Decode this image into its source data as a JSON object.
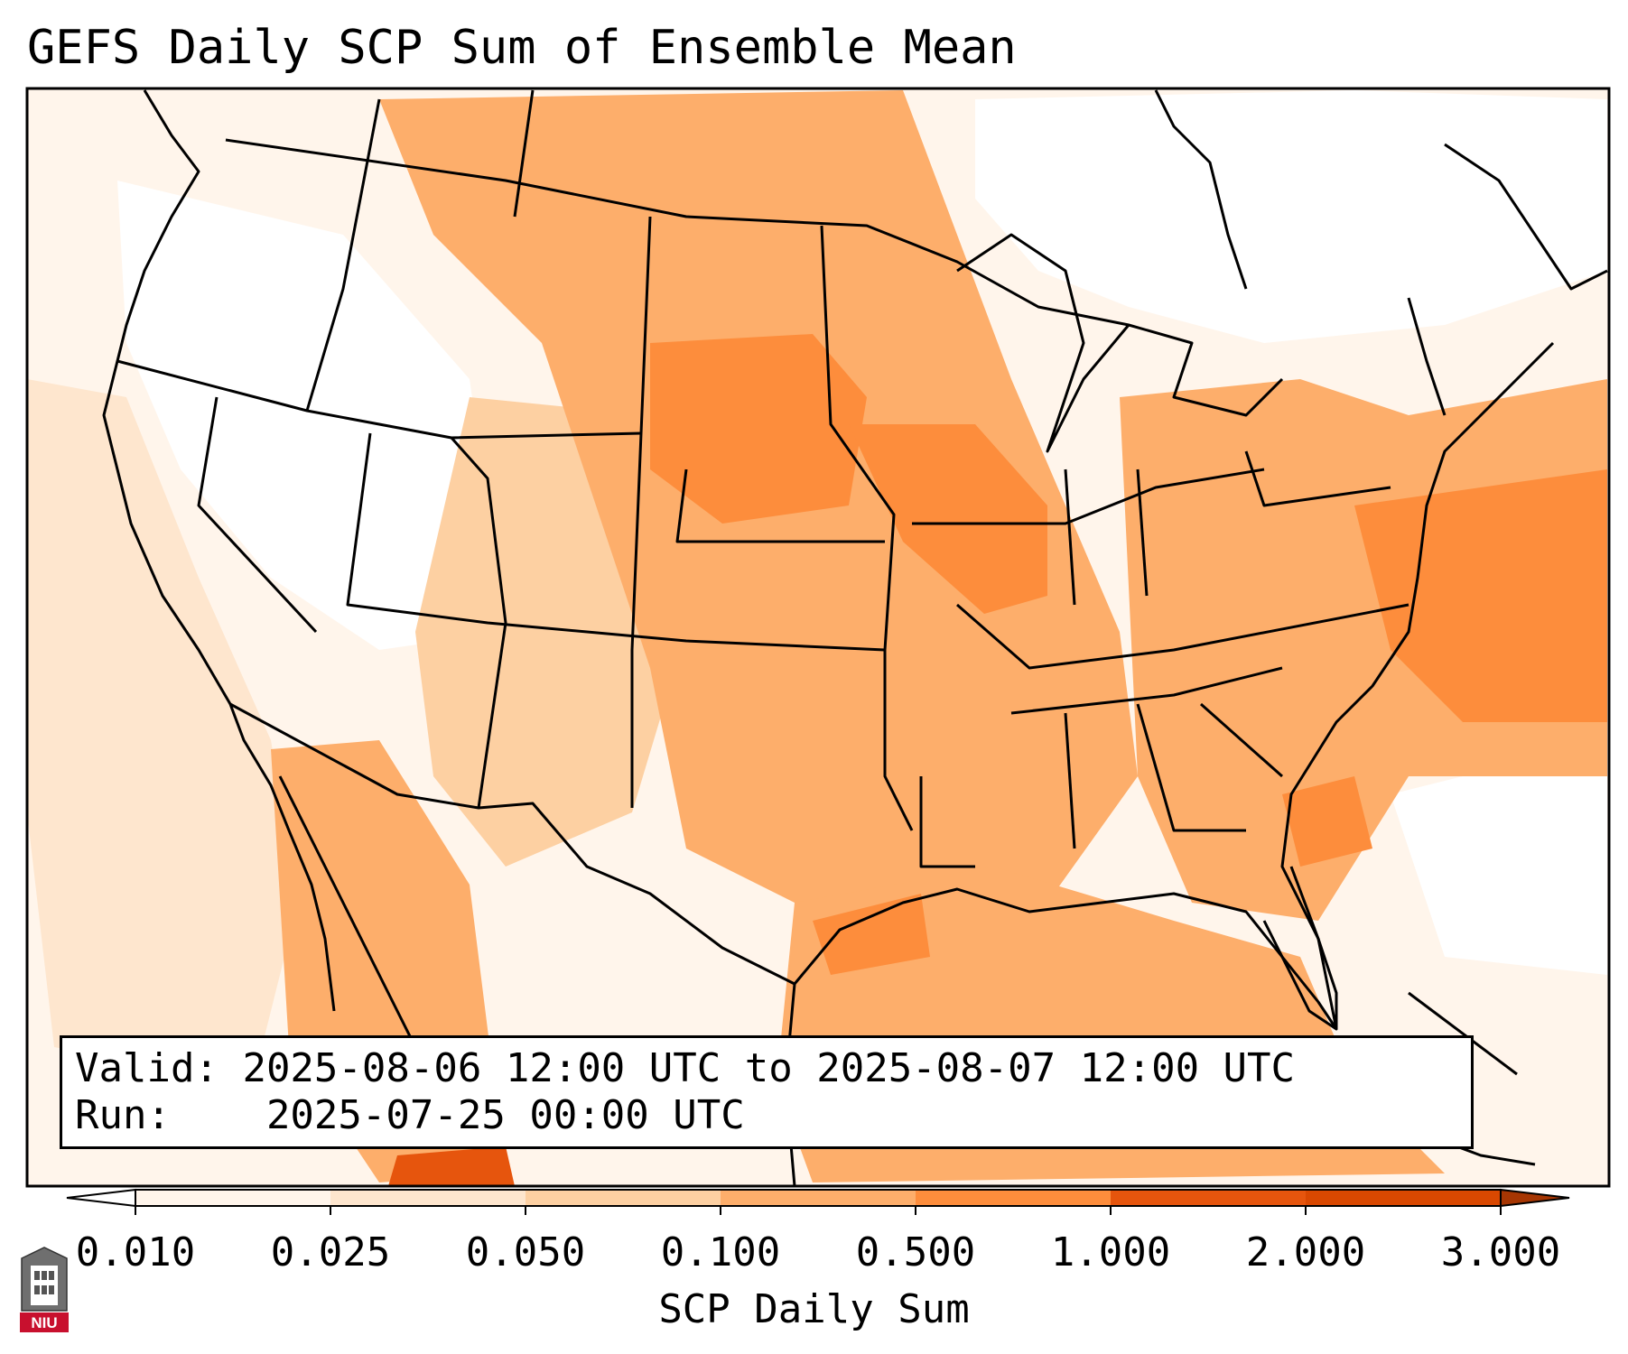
{
  "title": "GEFS Daily SCP Sum of Ensemble Mean",
  "info": {
    "valid_label": "Valid:",
    "valid_text": "2025-08-06 12:00 UTC to 2025-08-07 12:00 UTC",
    "run_label": "Run:",
    "run_text": "2025-07-25 00:00 UTC"
  },
  "colorbar": {
    "label": "SCP Daily Sum",
    "ticks": [
      "0.010",
      "0.025",
      "0.050",
      "0.100",
      "0.500",
      "1.000",
      "2.000",
      "3.000"
    ],
    "colors": [
      "#fff5eb",
      "#fee6ce",
      "#fdd0a2",
      "#fdae6b",
      "#fd8d3c",
      "#e6550d",
      "#d94801"
    ],
    "under_color": "#ffffff",
    "over_color": "#a63603",
    "extend": "both"
  },
  "logo": {
    "text": "NIU"
  }
}
